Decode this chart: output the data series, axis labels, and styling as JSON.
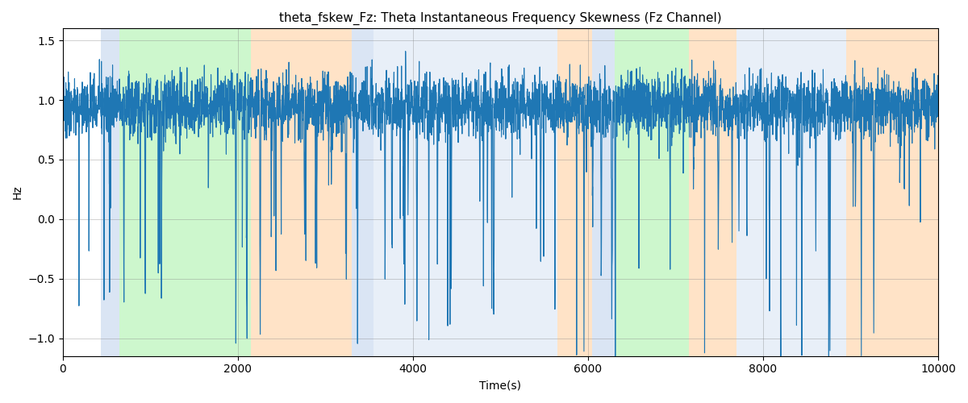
{
  "title": "theta_fskew_Fz: Theta Instantaneous Frequency Skewness (Fz Channel)",
  "xlabel": "Time(s)",
  "ylabel": "Hz",
  "xlim": [
    0,
    10000
  ],
  "ylim": [
    -1.15,
    1.6
  ],
  "yticks": [
    -1.0,
    -0.5,
    0.0,
    0.5,
    1.0,
    1.5
  ],
  "xticks": [
    0,
    2000,
    4000,
    6000,
    8000,
    10000
  ],
  "line_color": "#1f77b4",
  "line_width": 0.8,
  "bg_regions": [
    {
      "xstart": 430,
      "xend": 650,
      "color": "#aec6e8",
      "alpha": 0.45
    },
    {
      "xstart": 650,
      "xend": 2150,
      "color": "#90ee90",
      "alpha": 0.45
    },
    {
      "xstart": 2150,
      "xend": 3300,
      "color": "#ffcc99",
      "alpha": 0.55
    },
    {
      "xstart": 3300,
      "xend": 3550,
      "color": "#aec6e8",
      "alpha": 0.45
    },
    {
      "xstart": 3550,
      "xend": 5650,
      "color": "#aec6e8",
      "alpha": 0.28
    },
    {
      "xstart": 5650,
      "xend": 6050,
      "color": "#ffcc99",
      "alpha": 0.55
    },
    {
      "xstart": 6050,
      "xend": 6300,
      "color": "#aec6e8",
      "alpha": 0.45
    },
    {
      "xstart": 6300,
      "xend": 7150,
      "color": "#90ee90",
      "alpha": 0.45
    },
    {
      "xstart": 7150,
      "xend": 7700,
      "color": "#ffcc99",
      "alpha": 0.55
    },
    {
      "xstart": 7700,
      "xend": 8950,
      "color": "#aec6e8",
      "alpha": 0.28
    },
    {
      "xstart": 8950,
      "xend": 10000,
      "color": "#ffcc99",
      "alpha": 0.55
    }
  ],
  "seed": 42,
  "n_points": 5000,
  "figsize": [
    12.0,
    5.0
  ],
  "dpi": 100
}
